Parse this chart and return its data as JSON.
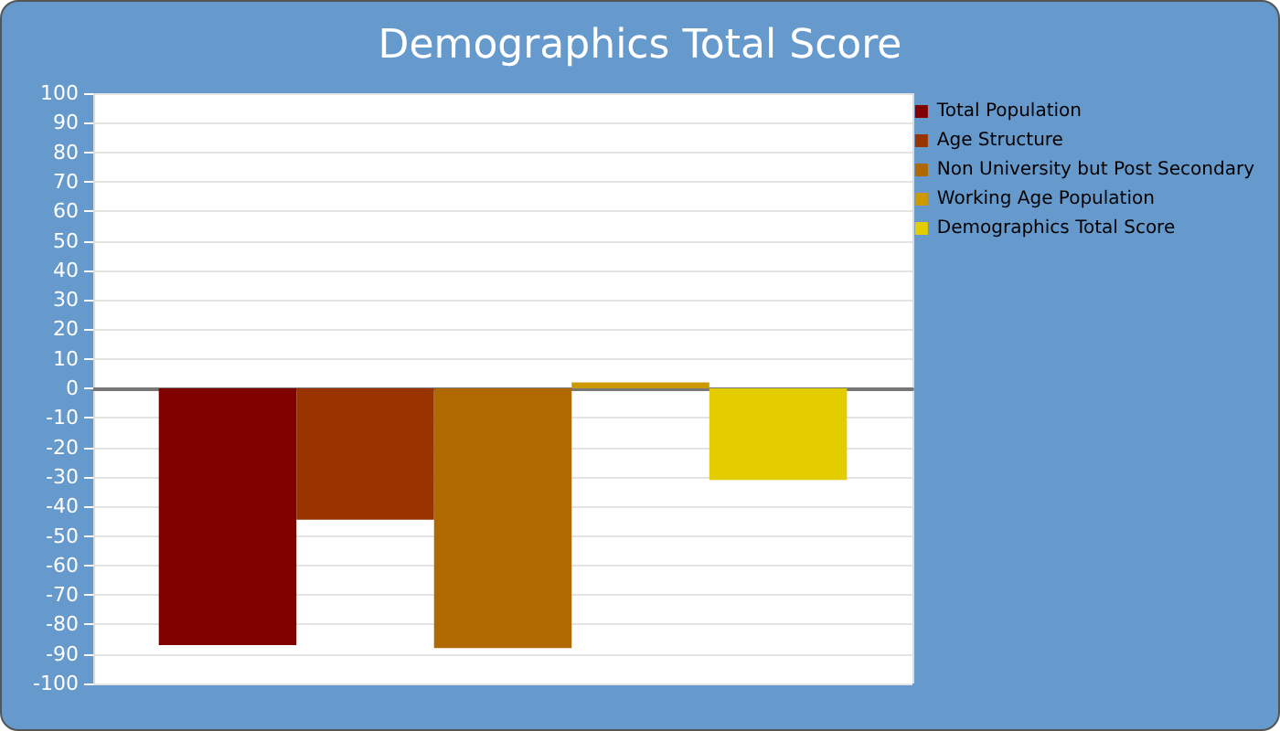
{
  "chart_data": {
    "type": "bar",
    "title": "Demographics Total Score",
    "categories": [
      null
    ],
    "series": [
      {
        "name": "Total Population",
        "color": "#800000",
        "values": [
          -87
        ]
      },
      {
        "name": "Age Structure",
        "color": "#993300",
        "values": [
          -44.5
        ]
      },
      {
        "name": "Non University but Post Secondary",
        "color": "#b06800",
        "values": [
          -88
        ]
      },
      {
        "name": "Working Age Population",
        "color": "#cc9900",
        "values": [
          2
        ]
      },
      {
        "name": "Demographics Total Score",
        "color": "#e3cc00",
        "values": [
          -31
        ]
      }
    ],
    "ylim": [
      -100,
      100
    ],
    "yticks": [
      -100,
      -90,
      -80,
      -70,
      -60,
      -50,
      -40,
      -30,
      -20,
      -10,
      0,
      10,
      20,
      30,
      40,
      50,
      60,
      70,
      80,
      90,
      100
    ],
    "grid": true,
    "legend": "right"
  }
}
